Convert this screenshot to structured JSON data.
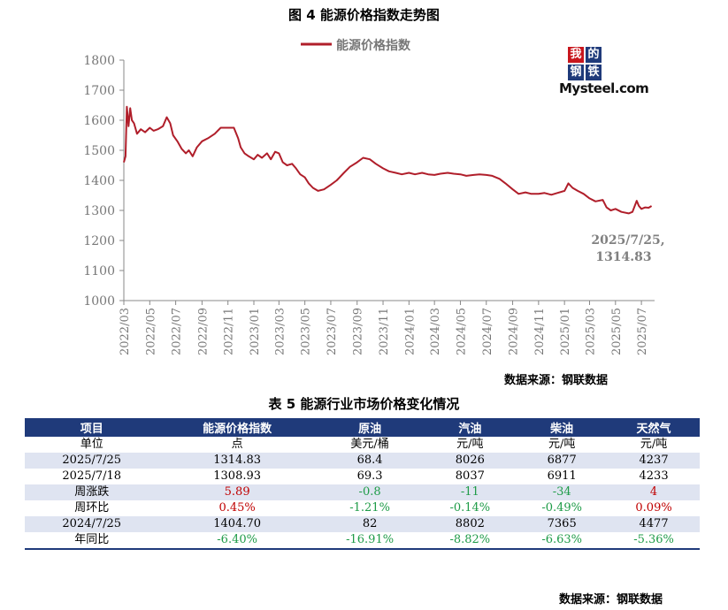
{
  "figure_title": "图 4  能源价格指数走势图",
  "chart_data": {
    "type": "line",
    "title": "图 4  能源价格指数走势图",
    "series": [
      {
        "name": "能源价格指数",
        "color": "#b01e2a",
        "points": [
          [
            "2022/03/01",
            1460
          ],
          [
            "2022/03/05",
            1480
          ],
          [
            "2022/03/08",
            1645
          ],
          [
            "2022/03/12",
            1580
          ],
          [
            "2022/03/16",
            1640
          ],
          [
            "2022/03/20",
            1600
          ],
          [
            "2022/03/25",
            1590
          ],
          [
            "2022/04/01",
            1555
          ],
          [
            "2022/04/10",
            1570
          ],
          [
            "2022/04/20",
            1560
          ],
          [
            "2022/05/01",
            1575
          ],
          [
            "2022/05/10",
            1565
          ],
          [
            "2022/05/20",
            1570
          ],
          [
            "2022/06/01",
            1580
          ],
          [
            "2022/06/10",
            1610
          ],
          [
            "2022/06/18",
            1590
          ],
          [
            "2022/06/25",
            1550
          ],
          [
            "2022/07/05",
            1530
          ],
          [
            "2022/07/15",
            1505
          ],
          [
            "2022/07/25",
            1490
          ],
          [
            "2022/08/01",
            1500
          ],
          [
            "2022/08/10",
            1480
          ],
          [
            "2022/08/20",
            1510
          ],
          [
            "2022/09/01",
            1530
          ],
          [
            "2022/09/15",
            1540
          ],
          [
            "2022/10/01",
            1555
          ],
          [
            "2022/10/15",
            1575
          ],
          [
            "2022/11/01",
            1575
          ],
          [
            "2022/11/15",
            1575
          ],
          [
            "2022/11/25",
            1540
          ],
          [
            "2022/12/01",
            1510
          ],
          [
            "2022/12/10",
            1490
          ],
          [
            "2022/12/20",
            1480
          ],
          [
            "2023/01/01",
            1470
          ],
          [
            "2023/01/10",
            1485
          ],
          [
            "2023/01/20",
            1475
          ],
          [
            "2023/02/01",
            1490
          ],
          [
            "2023/02/10",
            1470
          ],
          [
            "2023/02/20",
            1495
          ],
          [
            "2023/03/01",
            1490
          ],
          [
            "2023/03/10",
            1460
          ],
          [
            "2023/03/20",
            1450
          ],
          [
            "2023/04/01",
            1455
          ],
          [
            "2023/04/10",
            1440
          ],
          [
            "2023/04/20",
            1420
          ],
          [
            "2023/05/01",
            1410
          ],
          [
            "2023/05/10",
            1390
          ],
          [
            "2023/05/20",
            1375
          ],
          [
            "2023/06/01",
            1365
          ],
          [
            "2023/06/15",
            1370
          ],
          [
            "2023/07/01",
            1385
          ],
          [
            "2023/07/15",
            1400
          ],
          [
            "2023/08/01",
            1425
          ],
          [
            "2023/08/15",
            1445
          ],
          [
            "2023/09/01",
            1460
          ],
          [
            "2023/09/15",
            1475
          ],
          [
            "2023/10/01",
            1470
          ],
          [
            "2023/10/15",
            1455
          ],
          [
            "2023/11/01",
            1440
          ],
          [
            "2023/11/15",
            1430
          ],
          [
            "2023/12/01",
            1425
          ],
          [
            "2023/12/15",
            1420
          ],
          [
            "2024/01/01",
            1425
          ],
          [
            "2024/01/15",
            1420
          ],
          [
            "2024/02/01",
            1425
          ],
          [
            "2024/02/15",
            1420
          ],
          [
            "2024/03/01",
            1418
          ],
          [
            "2024/03/15",
            1422
          ],
          [
            "2024/04/01",
            1425
          ],
          [
            "2024/04/15",
            1422
          ],
          [
            "2024/05/01",
            1420
          ],
          [
            "2024/05/15",
            1415
          ],
          [
            "2024/06/01",
            1418
          ],
          [
            "2024/06/15",
            1420
          ],
          [
            "2024/07/01",
            1418
          ],
          [
            "2024/07/15",
            1415
          ],
          [
            "2024/08/01",
            1405
          ],
          [
            "2024/08/15",
            1390
          ],
          [
            "2024/09/01",
            1370
          ],
          [
            "2024/09/15",
            1355
          ],
          [
            "2024/10/01",
            1360
          ],
          [
            "2024/10/15",
            1355
          ],
          [
            "2024/11/01",
            1355
          ],
          [
            "2024/11/15",
            1358
          ],
          [
            "2024/12/01",
            1352
          ],
          [
            "2024/12/15",
            1358
          ],
          [
            "2025/01/01",
            1365
          ],
          [
            "2025/01/10",
            1390
          ],
          [
            "2025/01/20",
            1375
          ],
          [
            "2025/02/01",
            1365
          ],
          [
            "2025/02/15",
            1355
          ],
          [
            "2025/03/01",
            1340
          ],
          [
            "2025/03/15",
            1330
          ],
          [
            "2025/04/01",
            1335
          ],
          [
            "2025/04/10",
            1310
          ],
          [
            "2025/04/20",
            1300
          ],
          [
            "2025/05/01",
            1305
          ],
          [
            "2025/05/15",
            1295
          ],
          [
            "2025/06/01",
            1290
          ],
          [
            "2025/06/10",
            1295
          ],
          [
            "2025/06/20",
            1332
          ],
          [
            "2025/06/25",
            1315
          ],
          [
            "2025/07/01",
            1305
          ],
          [
            "2025/07/10",
            1310
          ],
          [
            "2025/07/18",
            1308.93
          ],
          [
            "2025/07/25",
            1314.83
          ]
        ]
      }
    ],
    "ylim": [
      1000,
      1800
    ],
    "yticks": [
      1000,
      1100,
      1200,
      1300,
      1400,
      1500,
      1600,
      1700,
      1800
    ],
    "xlim": [
      "2022/03/01",
      "2025/08/01"
    ],
    "xticks": [
      "2022/03",
      "2022/05",
      "2022/07",
      "2022/09",
      "2022/11",
      "2023/01",
      "2023/03",
      "2023/05",
      "2023/07",
      "2023/09",
      "2023/11",
      "2024/01",
      "2024/03",
      "2024/05",
      "2024/07",
      "2024/09",
      "2024/11",
      "2025/01",
      "2025/03",
      "2025/05",
      "2025/07"
    ],
    "legend": "top-center",
    "grid": false,
    "annotation": {
      "line1": "2025/7/25,",
      "line2": "1314.83",
      "x": "2025/07/25",
      "y": 1314.83
    }
  },
  "logo": {
    "chars": [
      "我",
      "的",
      "钢",
      "铁"
    ],
    "colors": [
      "#c8161d",
      "#1f3a7a",
      "#1f3a7a",
      "#1f3a7a"
    ],
    "word": "Mysteel.com"
  },
  "chart_source": "数据来源：钢联数据",
  "table_title": "表 5 能源行业市场价格变化情况",
  "table": {
    "header_color": "#1f3a7a",
    "headers": [
      "项目",
      "能源价格指数",
      "原油",
      "汽油",
      "柴油",
      "天然气"
    ],
    "rows": [
      {
        "cells": [
          "单位",
          "点",
          "美元/桶",
          "元/吨",
          "元/吨",
          "元/吨"
        ],
        "shade": false,
        "colors": [
          "",
          "",
          "",
          "",
          "",
          ""
        ]
      },
      {
        "cells": [
          "2025/7/25",
          "1314.83",
          "68.4",
          "8026",
          "6877",
          "4237"
        ],
        "shade": true,
        "colors": [
          "",
          "",
          "",
          "",
          "",
          ""
        ]
      },
      {
        "cells": [
          "2025/7/18",
          "1308.93",
          "69.3",
          "8037",
          "6911",
          "4233"
        ],
        "shade": false,
        "colors": [
          "",
          "",
          "",
          "",
          "",
          ""
        ]
      },
      {
        "cells": [
          "周涨跌",
          "5.89",
          "-0.8",
          "-11",
          "-34",
          "4"
        ],
        "shade": true,
        "colors": [
          "",
          "red",
          "green",
          "green",
          "green",
          "red"
        ]
      },
      {
        "cells": [
          "周环比",
          "0.45%",
          "-1.21%",
          "-0.14%",
          "-0.49%",
          "0.09%"
        ],
        "shade": false,
        "colors": [
          "",
          "red",
          "green",
          "green",
          "green",
          "red"
        ]
      },
      {
        "cells": [
          "2024/7/25",
          "1404.70",
          "82",
          "8802",
          "7365",
          "4477"
        ],
        "shade": true,
        "colors": [
          "",
          "",
          "",
          "",
          "",
          ""
        ]
      },
      {
        "cells": [
          "年同比",
          "-6.40%",
          "-16.91%",
          "-8.82%",
          "-6.63%",
          "-5.36%"
        ],
        "shade": false,
        "colors": [
          "",
          "green",
          "green",
          "green",
          "green",
          "green"
        ]
      }
    ]
  },
  "table_source": "数据来源：钢联数据"
}
